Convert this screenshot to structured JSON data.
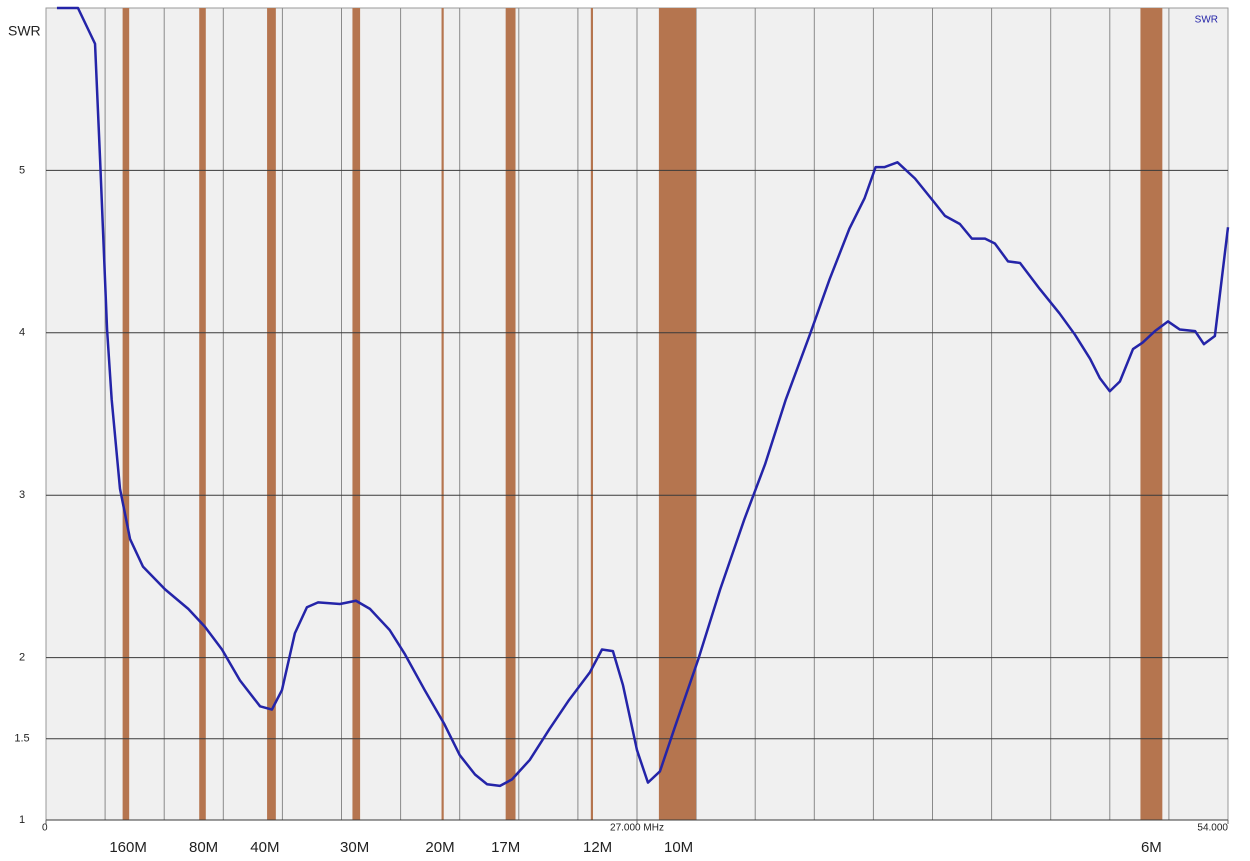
{
  "chart_data": {
    "type": "line",
    "ylabel": "SWR",
    "xlim": [
      0,
      54
    ],
    "xticks": [
      0,
      {
        "value": 27,
        "label": "27.000 MHz"
      },
      {
        "value": 54,
        "label": "54.000"
      }
    ],
    "ylim": [
      1,
      6
    ],
    "yticks": [
      1,
      1.5,
      2,
      3,
      4,
      5
    ],
    "grid": true,
    "legend": "top-right",
    "band_color": "#b5754f",
    "bands": [
      [
        3.5,
        3.8
      ],
      [
        7.0,
        7.3
      ],
      [
        10.1,
        10.5
      ],
      [
        14.0,
        14.35
      ],
      [
        18.07,
        18.17
      ],
      [
        21.0,
        21.45
      ],
      [
        24.89,
        24.99
      ],
      [
        28.0,
        29.7
      ],
      [
        50.0,
        51.0
      ]
    ],
    "band_labels": [
      {
        "label": "160M",
        "x": 3.75
      },
      {
        "label": "80M",
        "x": 7.2
      },
      {
        "label": "40M",
        "x": 10.0
      },
      {
        "label": "30M",
        "x": 14.1
      },
      {
        "label": "20M",
        "x": 18.0
      },
      {
        "label": "17M",
        "x": 21.0
      },
      {
        "label": "12M",
        "x": 25.2
      },
      {
        "label": "10M",
        "x": 28.9
      },
      {
        "label": "6M",
        "x": 50.5
      }
    ],
    "x": [
      0.5,
      1.46,
      2.24,
      2.47,
      2.79,
      3.0,
      3.38,
      3.84,
      4.43,
      5.44,
      6.5,
      7.26,
      8.04,
      8.86,
      9.78,
      10.32,
      10.78,
      11.37,
      11.92,
      12.43,
      13.43,
      14.16,
      14.8,
      15.7,
      16.4,
      17.3,
      18.2,
      18.9,
      19.6,
      20.15,
      20.74,
      21.29,
      22.1,
      23.0,
      23.9,
      24.85,
      25.4,
      25.9,
      26.36,
      27.0,
      27.5,
      28.05,
      28.7,
      29.8,
      30.8,
      31.9,
      32.85,
      33.8,
      34.9,
      35.8,
      36.7,
      37.4,
      37.9,
      38.3,
      38.9,
      39.7,
      40.6,
      41.07,
      41.75,
      42.3,
      42.9,
      43.35,
      43.95,
      44.5,
      45.4,
      46.3,
      47.0,
      47.7,
      48.15,
      48.6,
      49.06,
      49.66,
      50.1,
      50.66,
      51.26,
      51.8,
      52.5,
      52.9,
      53.4,
      54.0
    ],
    "series": [
      {
        "name": "SWR",
        "color": "#2424a8",
        "values": [
          6.0,
          6.0,
          5.78,
          5.07,
          4.02,
          3.59,
          3.04,
          2.73,
          2.56,
          2.42,
          2.3,
          2.19,
          2.05,
          1.86,
          1.7,
          1.68,
          1.8,
          2.15,
          2.31,
          2.34,
          2.33,
          2.35,
          2.3,
          2.17,
          2.02,
          1.8,
          1.59,
          1.4,
          1.28,
          1.22,
          1.21,
          1.25,
          1.37,
          1.56,
          1.74,
          1.91,
          2.05,
          2.04,
          1.83,
          1.43,
          1.23,
          1.3,
          1.56,
          1.99,
          2.42,
          2.85,
          3.19,
          3.59,
          3.99,
          4.33,
          4.64,
          4.83,
          5.02,
          5.02,
          5.05,
          4.95,
          4.8,
          4.72,
          4.67,
          4.58,
          4.58,
          4.55,
          4.44,
          4.43,
          4.27,
          4.12,
          3.99,
          3.84,
          3.72,
          3.64,
          3.7,
          3.9,
          3.94,
          4.01,
          4.07,
          4.02,
          4.01,
          3.93,
          3.98,
          4.65
        ]
      }
    ]
  }
}
